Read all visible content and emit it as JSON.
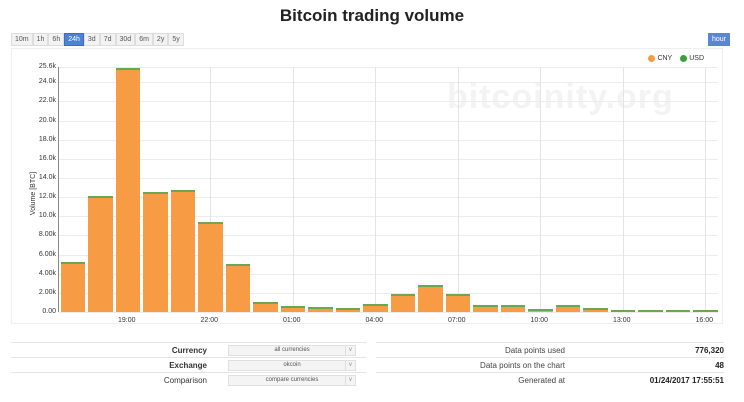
{
  "title": "Bitcoin trading volume",
  "range_buttons": [
    {
      "label": "10m",
      "active": false
    },
    {
      "label": "1h",
      "active": false
    },
    {
      "label": "6h",
      "active": false
    },
    {
      "label": "24h",
      "active": true
    },
    {
      "label": "3d",
      "active": false
    },
    {
      "label": "7d",
      "active": false
    },
    {
      "label": "30d",
      "active": false
    },
    {
      "label": "6m",
      "active": false
    },
    {
      "label": "2y",
      "active": false
    },
    {
      "label": "5y",
      "active": false
    }
  ],
  "interval_button": "hour",
  "watermark": "bitcoinity.org",
  "legend": [
    {
      "label": "CNY",
      "color": "#f79c44"
    },
    {
      "label": "USD",
      "color": "#3d9e3d"
    }
  ],
  "controls": [
    {
      "label": "Currency",
      "bold": true,
      "value": "all currencies"
    },
    {
      "label": "Exchange",
      "bold": true,
      "value": "okcoin"
    },
    {
      "label": "Comparison",
      "bold": false,
      "value": "compare currencies"
    }
  ],
  "info": [
    {
      "key": "Data points used",
      "value": "776,320"
    },
    {
      "key": "Data points on the chart",
      "value": "48"
    },
    {
      "key": "Generated at",
      "value": "01/24/2017 17:55:51"
    }
  ],
  "chart_data": {
    "type": "bar",
    "stacked": true,
    "title": "Bitcoin trading volume",
    "xlabel": "",
    "ylabel": "Volume [BTC]",
    "ylim": [
      0,
      25600
    ],
    "yticks": [
      "0.00",
      "2.00k",
      "4.00k",
      "6.00k",
      "8.00k",
      "10.0k",
      "12.0k",
      "14.0k",
      "16.0k",
      "18.0k",
      "20.0k",
      "22.0k",
      "24.0k",
      "25.6k"
    ],
    "xticks": [
      "19:00",
      "22:00",
      "01:00",
      "04:00",
      "07:00",
      "10:00",
      "13:00",
      "16:00"
    ],
    "categories": [
      "17:00",
      "18:00",
      "19:00",
      "20:00",
      "21:00",
      "22:00",
      "23:00",
      "00:00",
      "01:00",
      "02:00",
      "03:00",
      "04:00",
      "05:00",
      "06:00",
      "07:00",
      "08:00",
      "09:00",
      "10:00",
      "11:00",
      "12:00",
      "13:00",
      "14:00",
      "15:00",
      "16:00"
    ],
    "series": [
      {
        "name": "CNY",
        "color": "#f79c44",
        "values": [
          5200,
          12000,
          25200,
          12400,
          12600,
          9300,
          4800,
          1000,
          650,
          500,
          400,
          850,
          1850,
          2800,
          1850,
          750,
          750,
          350,
          750,
          400,
          150,
          100,
          80,
          80
        ]
      },
      {
        "name": "USD",
        "color": "#3d9e3d",
        "values": [
          30,
          150,
          250,
          150,
          150,
          60,
          200,
          20,
          20,
          20,
          10,
          30,
          80,
          40,
          80,
          20,
          20,
          10,
          20,
          10,
          10,
          10,
          10,
          10
        ]
      }
    ],
    "grid": true,
    "legend_position": "top-right"
  }
}
